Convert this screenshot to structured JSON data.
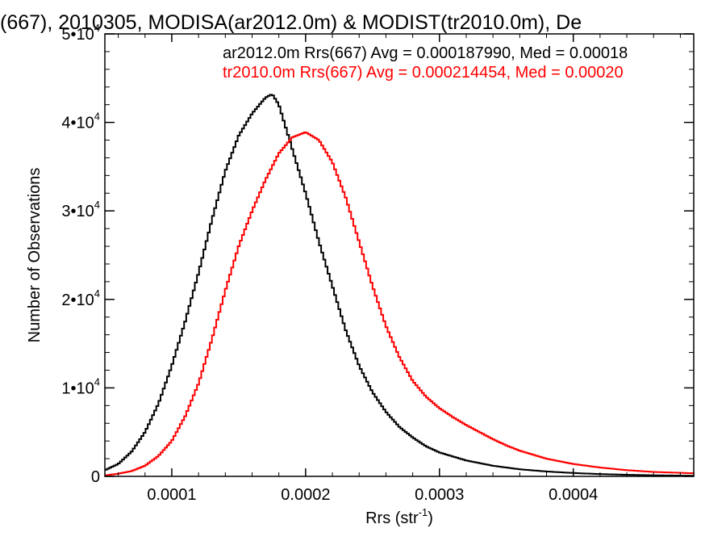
{
  "chart_data": {
    "type": "line",
    "title": "(667), 2010305, MODISA(ar2012.0m) & MODIST(tr2010.0m), De",
    "xlabel": "Rrs (str",
    "xlabel_exp": "-1",
    "xlabel_close": ")",
    "ylabel": "Number of Observations",
    "xlim": [
      5e-05,
      0.00049
    ],
    "ylim": [
      0,
      50000
    ],
    "x_ticks": [
      {
        "value": 0.0001,
        "label": "0.0001"
      },
      {
        "value": 0.0002,
        "label": "0.0002"
      },
      {
        "value": 0.0003,
        "label": "0.0003"
      },
      {
        "value": 0.0004,
        "label": "0.0004"
      }
    ],
    "y_ticks": [
      {
        "value": 0,
        "mant": "0",
        "exp": ""
      },
      {
        "value": 10000,
        "mant": "1•10",
        "exp": "4"
      },
      {
        "value": 20000,
        "mant": "2•10",
        "exp": "4"
      },
      {
        "value": 30000,
        "mant": "3•10",
        "exp": "4"
      },
      {
        "value": 40000,
        "mant": "4•10",
        "exp": "4"
      },
      {
        "value": 50000,
        "mant": "5•10",
        "exp": "4"
      }
    ],
    "legend_placement": "top-right",
    "series": [
      {
        "legend": "ar2012.0m Rrs(667) Avg = 0.000187990, Med = 0.00018",
        "color": "#000000",
        "points": [
          [
            5e-05,
            700
          ],
          [
            6e-05,
            1400
          ],
          [
            7e-05,
            2800
          ],
          [
            8e-05,
            5000
          ],
          [
            9e-05,
            8200
          ],
          [
            0.0001,
            12500
          ],
          [
            0.00011,
            17500
          ],
          [
            0.00012,
            23000
          ],
          [
            0.00013,
            29000
          ],
          [
            0.00014,
            34500
          ],
          [
            0.00015,
            38500
          ],
          [
            0.00016,
            41000
          ],
          [
            0.00017,
            42800
          ],
          [
            0.000175,
            43200
          ],
          [
            0.00018,
            42000
          ],
          [
            0.00019,
            37000
          ],
          [
            0.0002,
            32000
          ],
          [
            0.00021,
            26500
          ],
          [
            0.00022,
            21500
          ],
          [
            0.00023,
            16500
          ],
          [
            0.00024,
            12500
          ],
          [
            0.00025,
            9500
          ],
          [
            0.00026,
            7300
          ],
          [
            0.00027,
            5600
          ],
          [
            0.00028,
            4400
          ],
          [
            0.00029,
            3400
          ],
          [
            0.0003,
            2700
          ],
          [
            0.00032,
            1800
          ],
          [
            0.00034,
            1200
          ],
          [
            0.00036,
            800
          ],
          [
            0.00038,
            550
          ],
          [
            0.0004,
            380
          ],
          [
            0.00042,
            260
          ],
          [
            0.00044,
            180
          ],
          [
            0.00046,
            120
          ],
          [
            0.00049,
            70
          ]
        ]
      },
      {
        "legend": "tr2010.0m Rrs(667) Avg = 0.000214454, Med = 0.00020",
        "color": "#ff0000",
        "points": [
          [
            5e-05,
            100
          ],
          [
            6e-05,
            300
          ],
          [
            7e-05,
            600
          ],
          [
            8e-05,
            1200
          ],
          [
            9e-05,
            2300
          ],
          [
            0.0001,
            4000
          ],
          [
            0.00011,
            6800
          ],
          [
            0.00012,
            10500
          ],
          [
            0.00013,
            15500
          ],
          [
            0.00014,
            21000
          ],
          [
            0.00015,
            26000
          ],
          [
            0.00016,
            30000
          ],
          [
            0.00017,
            33500
          ],
          [
            0.00018,
            36500
          ],
          [
            0.00019,
            38300
          ],
          [
            0.0002,
            38900
          ],
          [
            0.00021,
            38000
          ],
          [
            0.00022,
            35500
          ],
          [
            0.00023,
            31500
          ],
          [
            0.00024,
            26500
          ],
          [
            0.00025,
            21500
          ],
          [
            0.00026,
            17000
          ],
          [
            0.00027,
            13500
          ],
          [
            0.00028,
            10800
          ],
          [
            0.00029,
            9000
          ],
          [
            0.0003,
            7700
          ],
          [
            0.00031,
            6700
          ],
          [
            0.00032,
            5800
          ],
          [
            0.00033,
            5000
          ],
          [
            0.00034,
            4200
          ],
          [
            0.00035,
            3500
          ],
          [
            0.00036,
            2900
          ],
          [
            0.00038,
            2000
          ],
          [
            0.0004,
            1400
          ],
          [
            0.00042,
            1000
          ],
          [
            0.00044,
            700
          ],
          [
            0.00046,
            500
          ],
          [
            0.00049,
            350
          ]
        ]
      }
    ]
  }
}
